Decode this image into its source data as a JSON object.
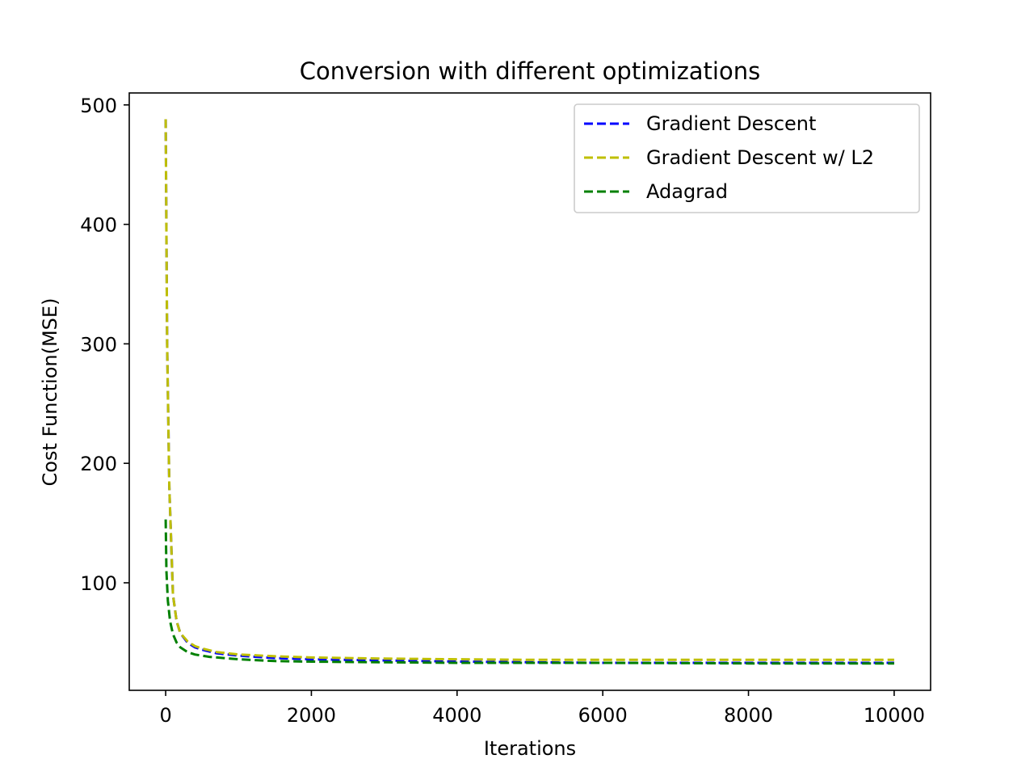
{
  "chart_data": {
    "type": "line",
    "title": "Conversion with different optimizations",
    "xlabel": "Iterations",
    "ylabel": "Cost Function(MSE)",
    "xlim": [
      -500,
      10500
    ],
    "ylim": [
      10,
      510
    ],
    "xticks": [
      0,
      2000,
      4000,
      6000,
      8000,
      10000
    ],
    "yticks": [
      100,
      200,
      300,
      400,
      500
    ],
    "grid": false,
    "legend_position": "top-right",
    "line_style": "dashed",
    "series": [
      {
        "name": "Gradient Descent",
        "color": "#0000ff",
        "x": [
          0,
          20,
          50,
          100,
          150,
          200,
          300,
          400,
          500,
          700,
          1000,
          1500,
          2000,
          3000,
          4000,
          5000,
          6000,
          8000,
          10000
        ],
        "y": [
          488,
          300,
          180,
          90,
          68,
          58,
          50,
          46,
          44,
          41,
          39,
          37,
          36,
          35,
          34,
          33.5,
          33,
          33,
          33
        ]
      },
      {
        "name": "Gradient Descent w/ L2",
        "color": "#bfbf00",
        "x": [
          0,
          20,
          50,
          100,
          150,
          200,
          300,
          400,
          500,
          700,
          1000,
          1500,
          2000,
          3000,
          4000,
          5000,
          6000,
          8000,
          10000
        ],
        "y": [
          488,
          300,
          180,
          90,
          68,
          58,
          51,
          47,
          45,
          42,
          40,
          38.5,
          37.5,
          36.5,
          36,
          35.5,
          35.5,
          35.5,
          35.5
        ]
      },
      {
        "name": "Adagrad",
        "color": "#008000",
        "x": [
          0,
          10,
          30,
          60,
          100,
          150,
          200,
          300,
          400,
          600,
          800,
          1000,
          1500,
          2000,
          3000,
          4000,
          6000,
          8000,
          10000
        ],
        "y": [
          153,
          110,
          85,
          68,
          57,
          50,
          46,
          42,
          40,
          38,
          37,
          36,
          34.5,
          34,
          33.5,
          33,
          33,
          32.5,
          32.5
        ]
      }
    ]
  }
}
